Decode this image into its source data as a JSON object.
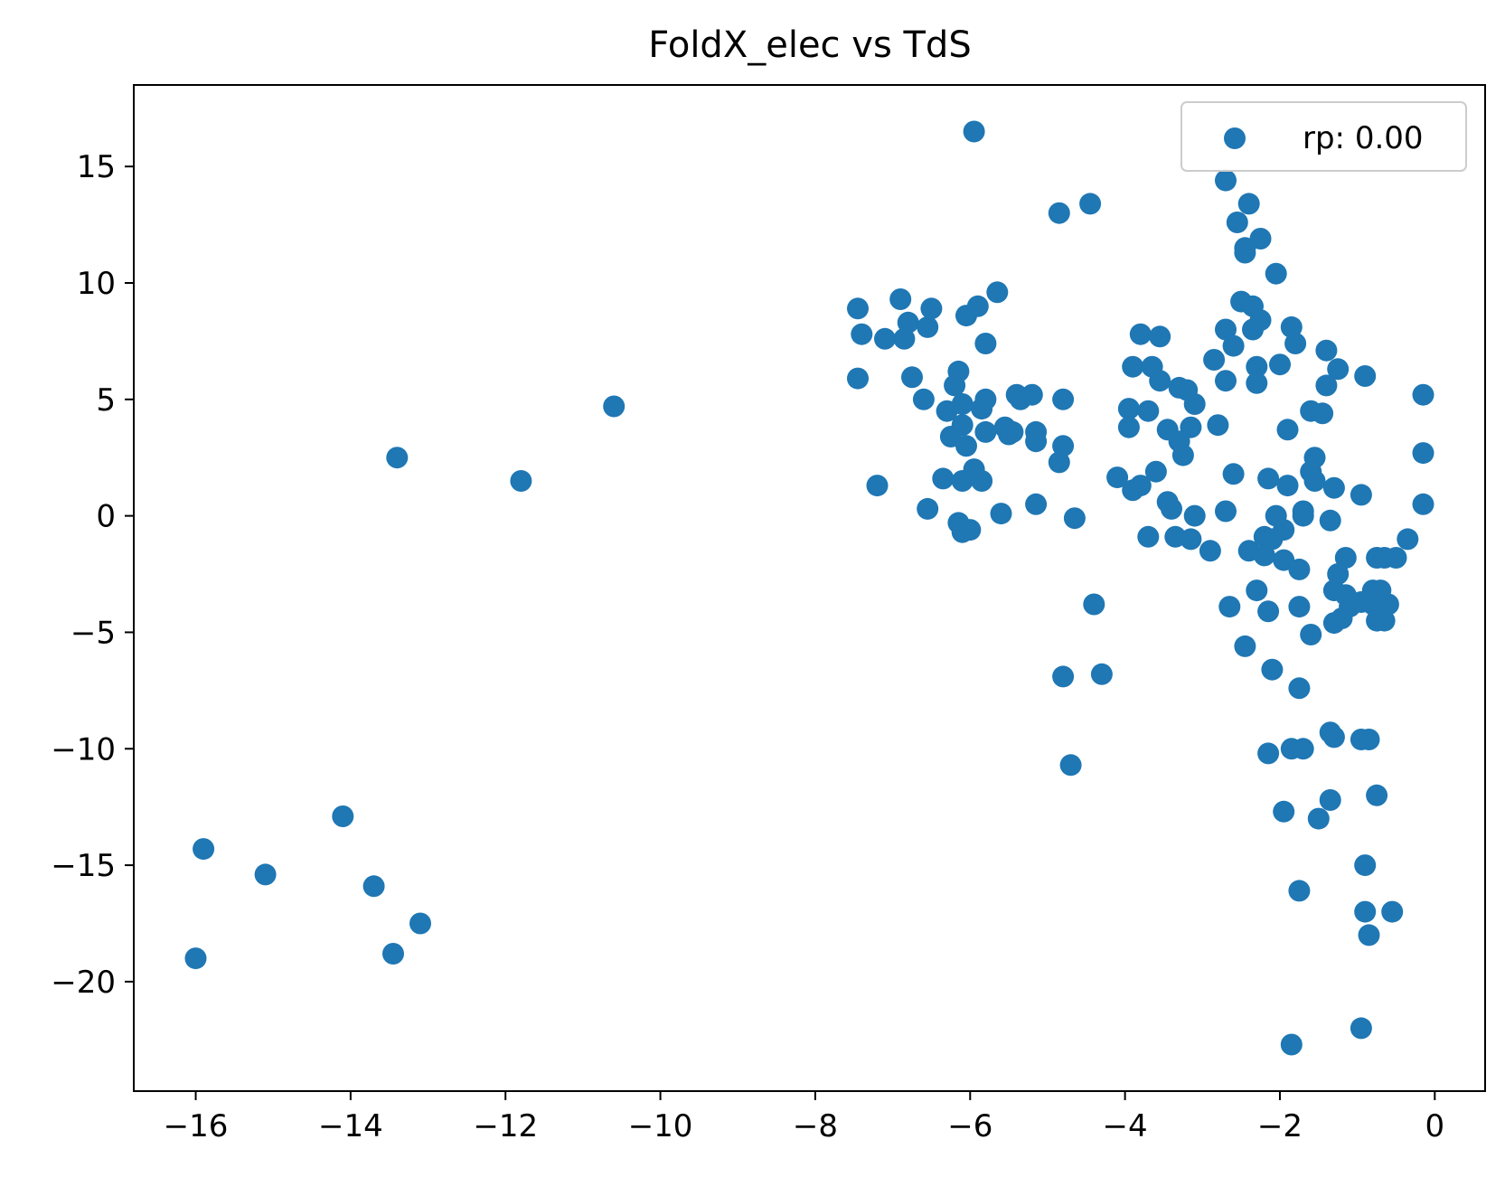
{
  "chart_data": {
    "type": "scatter",
    "title": "FoldX_elec vs TdS",
    "xlabel": "",
    "ylabel": "",
    "xlim": [
      -16.8,
      0.65
    ],
    "ylim": [
      -24.7,
      18.5
    ],
    "xticks": [
      -16,
      -14,
      -12,
      -10,
      -8,
      -6,
      -4,
      -2,
      0
    ],
    "xtick_labels": [
      "−16",
      "−14",
      "−12",
      "−10",
      "−8",
      "−6",
      "−4",
      "−2",
      "0"
    ],
    "yticks": [
      -20,
      -15,
      -10,
      -5,
      0,
      5,
      10,
      15
    ],
    "ytick_labels": [
      "−20",
      "−15",
      "−10",
      "−5",
      "0",
      "5",
      "10",
      "15"
    ],
    "grid": false,
    "legend": {
      "position": "top-right",
      "entries": [
        "rp: 0.00"
      ]
    },
    "series": [
      {
        "name": "rp: 0.00",
        "color": "#1f77b4",
        "points": [
          [
            -16.0,
            -19.0
          ],
          [
            -15.9,
            -14.3
          ],
          [
            -15.1,
            -15.4
          ],
          [
            -14.1,
            -12.9
          ],
          [
            -13.7,
            -15.9
          ],
          [
            -13.45,
            -18.8
          ],
          [
            -13.1,
            -17.5
          ],
          [
            -13.4,
            2.5
          ],
          [
            -11.8,
            1.5
          ],
          [
            -10.6,
            4.7
          ],
          [
            -7.45,
            8.9
          ],
          [
            -7.4,
            7.8
          ],
          [
            -7.45,
            5.9
          ],
          [
            -7.2,
            1.3
          ],
          [
            -7.1,
            7.6
          ],
          [
            -6.9,
            9.3
          ],
          [
            -6.85,
            7.6
          ],
          [
            -6.8,
            8.3
          ],
          [
            -6.75,
            5.95
          ],
          [
            -6.6,
            5.0
          ],
          [
            -6.55,
            8.1
          ],
          [
            -6.5,
            8.9
          ],
          [
            -6.55,
            0.3
          ],
          [
            -6.35,
            1.6
          ],
          [
            -6.3,
            4.5
          ],
          [
            -6.25,
            3.4
          ],
          [
            -6.2,
            5.6
          ],
          [
            -6.15,
            6.2
          ],
          [
            -6.1,
            4.8
          ],
          [
            -6.1,
            3.9
          ],
          [
            -6.05,
            3.0
          ],
          [
            -6.1,
            1.5
          ],
          [
            -6.15,
            -0.3
          ],
          [
            -6.1,
            -0.7
          ],
          [
            -6.0,
            -0.6
          ],
          [
            -6.05,
            8.6
          ],
          [
            -5.95,
            16.5
          ],
          [
            -5.95,
            2.0
          ],
          [
            -5.9,
            9.0
          ],
          [
            -5.85,
            4.6
          ],
          [
            -5.8,
            3.6
          ],
          [
            -5.85,
            1.5
          ],
          [
            -5.8,
            7.4
          ],
          [
            -5.8,
            5.0
          ],
          [
            -5.65,
            9.6
          ],
          [
            -5.6,
            0.1
          ],
          [
            -5.55,
            3.8
          ],
          [
            -5.5,
            3.5
          ],
          [
            -5.45,
            3.6
          ],
          [
            -5.4,
            5.2
          ],
          [
            -5.35,
            5.0
          ],
          [
            -5.2,
            5.2
          ],
          [
            -5.15,
            3.6
          ],
          [
            -5.15,
            3.2
          ],
          [
            -5.15,
            0.5
          ],
          [
            -4.85,
            2.3
          ],
          [
            -4.8,
            3.0
          ],
          [
            -4.8,
            5.0
          ],
          [
            -4.85,
            13.0
          ],
          [
            -4.8,
            -6.9
          ],
          [
            -4.7,
            -10.7
          ],
          [
            -4.65,
            -0.1
          ],
          [
            -4.45,
            13.4
          ],
          [
            -4.4,
            -3.8
          ],
          [
            -4.3,
            -6.8
          ],
          [
            -4.1,
            1.65
          ],
          [
            -3.95,
            4.6
          ],
          [
            -3.95,
            3.8
          ],
          [
            -3.9,
            6.4
          ],
          [
            -3.9,
            1.1
          ],
          [
            -3.8,
            7.8
          ],
          [
            -3.8,
            1.3
          ],
          [
            -3.7,
            4.5
          ],
          [
            -3.7,
            -0.9
          ],
          [
            -3.65,
            6.4
          ],
          [
            -3.6,
            1.9
          ],
          [
            -3.55,
            5.8
          ],
          [
            -3.55,
            7.7
          ],
          [
            -3.45,
            0.6
          ],
          [
            -3.45,
            3.7
          ],
          [
            -3.4,
            0.3
          ],
          [
            -3.35,
            -0.9
          ],
          [
            -3.3,
            5.5
          ],
          [
            -3.3,
            3.2
          ],
          [
            -3.25,
            2.6
          ],
          [
            -3.2,
            5.4
          ],
          [
            -3.15,
            -1.0
          ],
          [
            -3.15,
            3.8
          ],
          [
            -3.1,
            4.8
          ],
          [
            -3.1,
            0.0
          ],
          [
            -2.9,
            -1.5
          ],
          [
            -2.85,
            6.7
          ],
          [
            -2.8,
            3.9
          ],
          [
            -2.7,
            14.4
          ],
          [
            -2.7,
            8.0
          ],
          [
            -2.7,
            5.8
          ],
          [
            -2.7,
            0.2
          ],
          [
            -2.65,
            -3.9
          ],
          [
            -2.6,
            7.3
          ],
          [
            -2.6,
            1.8
          ],
          [
            -2.55,
            12.6
          ],
          [
            -2.5,
            9.2
          ],
          [
            -2.45,
            11.5
          ],
          [
            -2.45,
            11.3
          ],
          [
            -2.45,
            -5.6
          ],
          [
            -2.4,
            13.4
          ],
          [
            -2.4,
            -1.5
          ],
          [
            -2.35,
            9.0
          ],
          [
            -2.35,
            8.0
          ],
          [
            -2.3,
            6.4
          ],
          [
            -2.3,
            5.7
          ],
          [
            -2.3,
            -3.2
          ],
          [
            -2.25,
            8.4
          ],
          [
            -2.25,
            11.9
          ],
          [
            -2.2,
            -0.9
          ],
          [
            -2.2,
            -1.7
          ],
          [
            -2.15,
            -10.2
          ],
          [
            -2.15,
            1.6
          ],
          [
            -2.15,
            -4.1
          ],
          [
            -2.1,
            -1.0
          ],
          [
            -2.1,
            -6.6
          ],
          [
            -2.05,
            0.0
          ],
          [
            -2.05,
            10.4
          ],
          [
            -2.0,
            6.5
          ],
          [
            -1.95,
            -1.9
          ],
          [
            -1.95,
            -0.6
          ],
          [
            -1.95,
            -12.7
          ],
          [
            -1.9,
            1.3
          ],
          [
            -1.9,
            3.7
          ],
          [
            -1.85,
            -22.7
          ],
          [
            -1.85,
            -10.0
          ],
          [
            -1.85,
            8.1
          ],
          [
            -1.8,
            7.4
          ],
          [
            -1.75,
            -2.3
          ],
          [
            -1.75,
            -3.9
          ],
          [
            -1.75,
            -7.4
          ],
          [
            -1.7,
            -10.0
          ],
          [
            -1.75,
            -16.1
          ],
          [
            -1.7,
            0.2
          ],
          [
            -1.7,
            0.0
          ],
          [
            -1.6,
            4.5
          ],
          [
            -1.6,
            1.9
          ],
          [
            -1.6,
            -5.1
          ],
          [
            -1.55,
            1.5
          ],
          [
            -1.55,
            2.5
          ],
          [
            -1.5,
            -13.0
          ],
          [
            -1.45,
            4.4
          ],
          [
            -1.4,
            7.1
          ],
          [
            -1.4,
            5.6
          ],
          [
            -1.35,
            -0.2
          ],
          [
            -1.35,
            -9.3
          ],
          [
            -1.35,
            -12.2
          ],
          [
            -1.3,
            1.2
          ],
          [
            -1.3,
            -3.2
          ],
          [
            -1.3,
            -4.6
          ],
          [
            -1.3,
            -9.5
          ],
          [
            -1.25,
            6.3
          ],
          [
            -1.25,
            -2.5
          ],
          [
            -1.2,
            -4.4
          ],
          [
            -1.15,
            -1.8
          ],
          [
            -1.15,
            -3.4
          ],
          [
            -1.1,
            -3.9
          ],
          [
            -0.95,
            0.9
          ],
          [
            -0.95,
            -3.7
          ],
          [
            -0.95,
            -9.6
          ],
          [
            -0.95,
            -22.0
          ],
          [
            -0.9,
            6.0
          ],
          [
            -0.9,
            -15.0
          ],
          [
            -0.9,
            -17.0
          ],
          [
            -0.85,
            -18.0
          ],
          [
            -0.85,
            -9.6
          ],
          [
            -0.8,
            -3.2
          ],
          [
            -0.8,
            -3.8
          ],
          [
            -0.75,
            -1.8
          ],
          [
            -0.75,
            -4.5
          ],
          [
            -0.75,
            -12.0
          ],
          [
            -0.7,
            -3.2
          ],
          [
            -0.65,
            -1.8
          ],
          [
            -0.65,
            -4.5
          ],
          [
            -0.6,
            -3.8
          ],
          [
            -0.55,
            -17.0
          ],
          [
            -0.5,
            -1.8
          ],
          [
            -0.35,
            -1.0
          ],
          [
            -0.15,
            5.2
          ],
          [
            -0.15,
            2.7
          ],
          [
            -0.15,
            0.5
          ]
        ]
      }
    ]
  }
}
